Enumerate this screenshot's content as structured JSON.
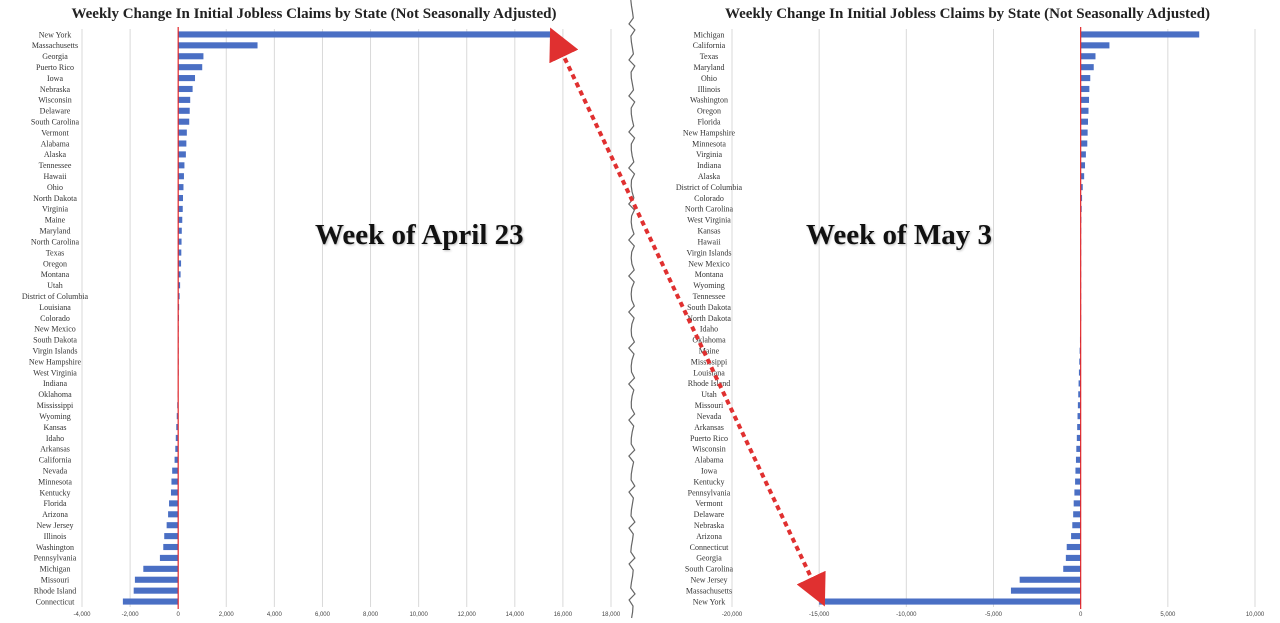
{
  "colors": {
    "bar": "#4a6fc4",
    "zero_line": "#e0262a",
    "grid": "#d9d9d9",
    "arrow": "#e03030"
  },
  "chart_data": [
    {
      "type": "bar",
      "orientation": "horizontal",
      "title": "Weekly Change In Initial Jobless Claims by State (Not Seasonally Adjusted)",
      "annotation": "Week of April 23",
      "xlim": [
        -4000,
        18000
      ],
      "xticks": [
        -4000,
        -2000,
        0,
        2000,
        4000,
        6000,
        8000,
        10000,
        12000,
        14000,
        16000,
        18000
      ],
      "xtick_labels": [
        "-4,000",
        "-2,000",
        "0",
        "2,000",
        "4,000",
        "6,000",
        "8,000",
        "10,000",
        "12,000",
        "14,000",
        "16,000",
        "18,000"
      ],
      "grid": true,
      "categories": [
        "New York",
        "Massachusetts",
        "Georgia",
        "Puerto Rico",
        "Iowa",
        "Nebraska",
        "Wisconsin",
        "Delaware",
        "South Carolina",
        "Vermont",
        "Alabama",
        "Alaska",
        "Tennessee",
        "Hawaii",
        "Ohio",
        "North Dakota",
        "Virginia",
        "Maine",
        "Maryland",
        "North Carolina",
        "Texas",
        "Oregon",
        "Montana",
        "Utah",
        "District of Columbia",
        "Louisiana",
        "Colorado",
        "New Mexico",
        "South Dakota",
        "Virgin Islands",
        "New Hampshire",
        "West Virginia",
        "Indiana",
        "Oklahoma",
        "Mississippi",
        "Wyoming",
        "Kansas",
        "Idaho",
        "Arkansas",
        "California",
        "Nevada",
        "Minnesota",
        "Kentucky",
        "Florida",
        "Arizona",
        "New Jersey",
        "Illinois",
        "Washington",
        "Pennsylvania",
        "Michigan",
        "Missouri",
        "Rhode Island",
        "Connecticut"
      ],
      "values": [
        15600,
        3300,
        1050,
        1000,
        700,
        600,
        500,
        480,
        460,
        360,
        340,
        320,
        260,
        240,
        220,
        200,
        190,
        170,
        150,
        140,
        130,
        120,
        100,
        80,
        60,
        40,
        30,
        20,
        15,
        10,
        5,
        0,
        -10,
        -20,
        -40,
        -60,
        -80,
        -100,
        -120,
        -150,
        -250,
        -280,
        -300,
        -380,
        -420,
        -480,
        -580,
        -620,
        -760,
        -1450,
        -1800,
        -1850,
        -2300
      ]
    },
    {
      "type": "bar",
      "orientation": "horizontal",
      "title": "Weekly Change In Initial Jobless Claims by State (Not Seasonally Adjusted)",
      "annotation": "Week of May 3",
      "xlim": [
        -20000,
        10000
      ],
      "xticks": [
        -20000,
        -15000,
        -10000,
        -5000,
        0,
        5000,
        10000
      ],
      "xtick_labels": [
        "-20,000",
        "-15,000",
        "-10,000",
        "-5,000",
        "0",
        "5,000",
        "10,000"
      ],
      "grid": true,
      "categories": [
        "Michigan",
        "California",
        "Texas",
        "Maryland",
        "Ohio",
        "Illinois",
        "Washington",
        "Oregon",
        "Florida",
        "New Hampshire",
        "Minnesota",
        "Virginia",
        "Indiana",
        "Alaska",
        "District of Columbia",
        "Colorado",
        "North Carolina",
        "West Virginia",
        "Kansas",
        "Hawaii",
        "Virgin Islands",
        "New Mexico",
        "Montana",
        "Wyoming",
        "Tennessee",
        "South Dakota",
        "North Dakota",
        "Idaho",
        "Oklahoma",
        "Maine",
        "Mississippi",
        "Louisiana",
        "Rhode Island",
        "Utah",
        "Missouri",
        "Nevada",
        "Arkansas",
        "Puerto Rico",
        "Wisconsin",
        "Alabama",
        "Iowa",
        "Kentucky",
        "Pennsylvania",
        "Vermont",
        "Delaware",
        "Nebraska",
        "Arizona",
        "Connecticut",
        "Georgia",
        "South Carolina",
        "New Jersey",
        "Massachusetts",
        "New York"
      ],
      "values": [
        6800,
        1650,
        850,
        750,
        550,
        500,
        480,
        450,
        420,
        400,
        380,
        300,
        250,
        200,
        120,
        80,
        60,
        40,
        30,
        20,
        15,
        10,
        5,
        0,
        0,
        0,
        0,
        -10,
        -40,
        -60,
        -80,
        -100,
        -120,
        -140,
        -160,
        -180,
        -200,
        -220,
        -250,
        -270,
        -300,
        -320,
        -360,
        -400,
        -430,
        -480,
        -550,
        -800,
        -850,
        -1000,
        -3500,
        -4000,
        -15000
      ]
    }
  ]
}
